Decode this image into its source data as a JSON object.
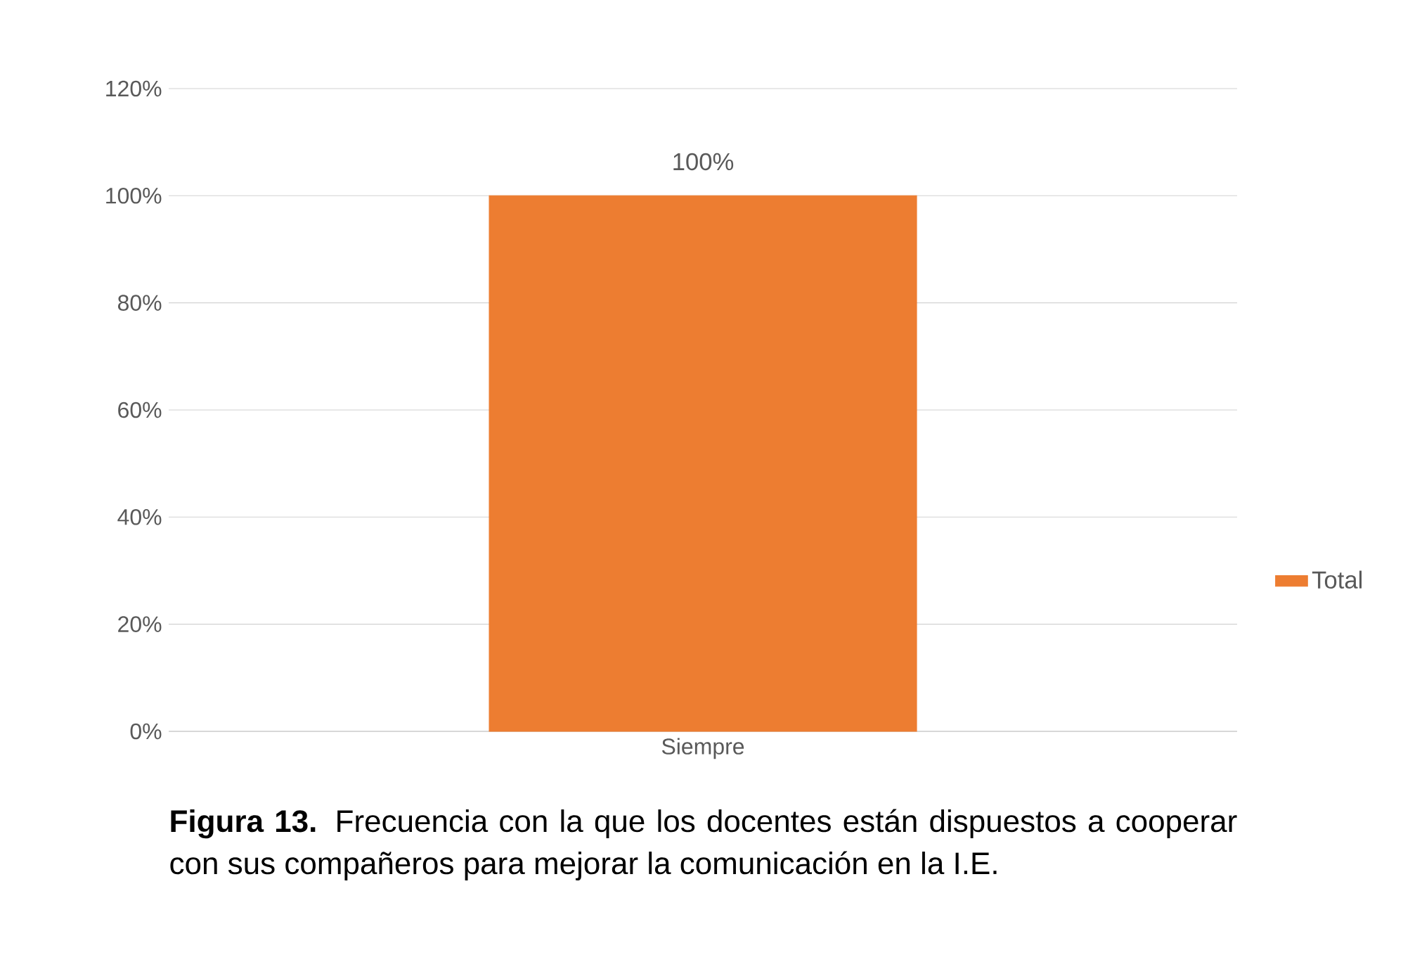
{
  "chart_data": {
    "type": "bar",
    "categories": [
      "Siempre"
    ],
    "series": [
      {
        "name": "Total",
        "color": "#ed7d31",
        "values": [
          100
        ],
        "value_labels": [
          "100%"
        ]
      }
    ],
    "ylim": [
      0,
      120
    ],
    "yticks": [
      {
        "value": 0,
        "label": "0%"
      },
      {
        "value": 20,
        "label": "20%"
      },
      {
        "value": 40,
        "label": "40%"
      },
      {
        "value": 60,
        "label": "60%"
      },
      {
        "value": 80,
        "label": "80%"
      },
      {
        "value": 100,
        "label": "100%"
      },
      {
        "value": 120,
        "label": "120%"
      }
    ],
    "grid": "y",
    "legend": "right",
    "annotations": [
      "**Figura 13.** Frecuencia con la que los docentes están dispuestos a cooperar con sus compañeros para mejorar la comunicación en la I.E."
    ]
  }
}
